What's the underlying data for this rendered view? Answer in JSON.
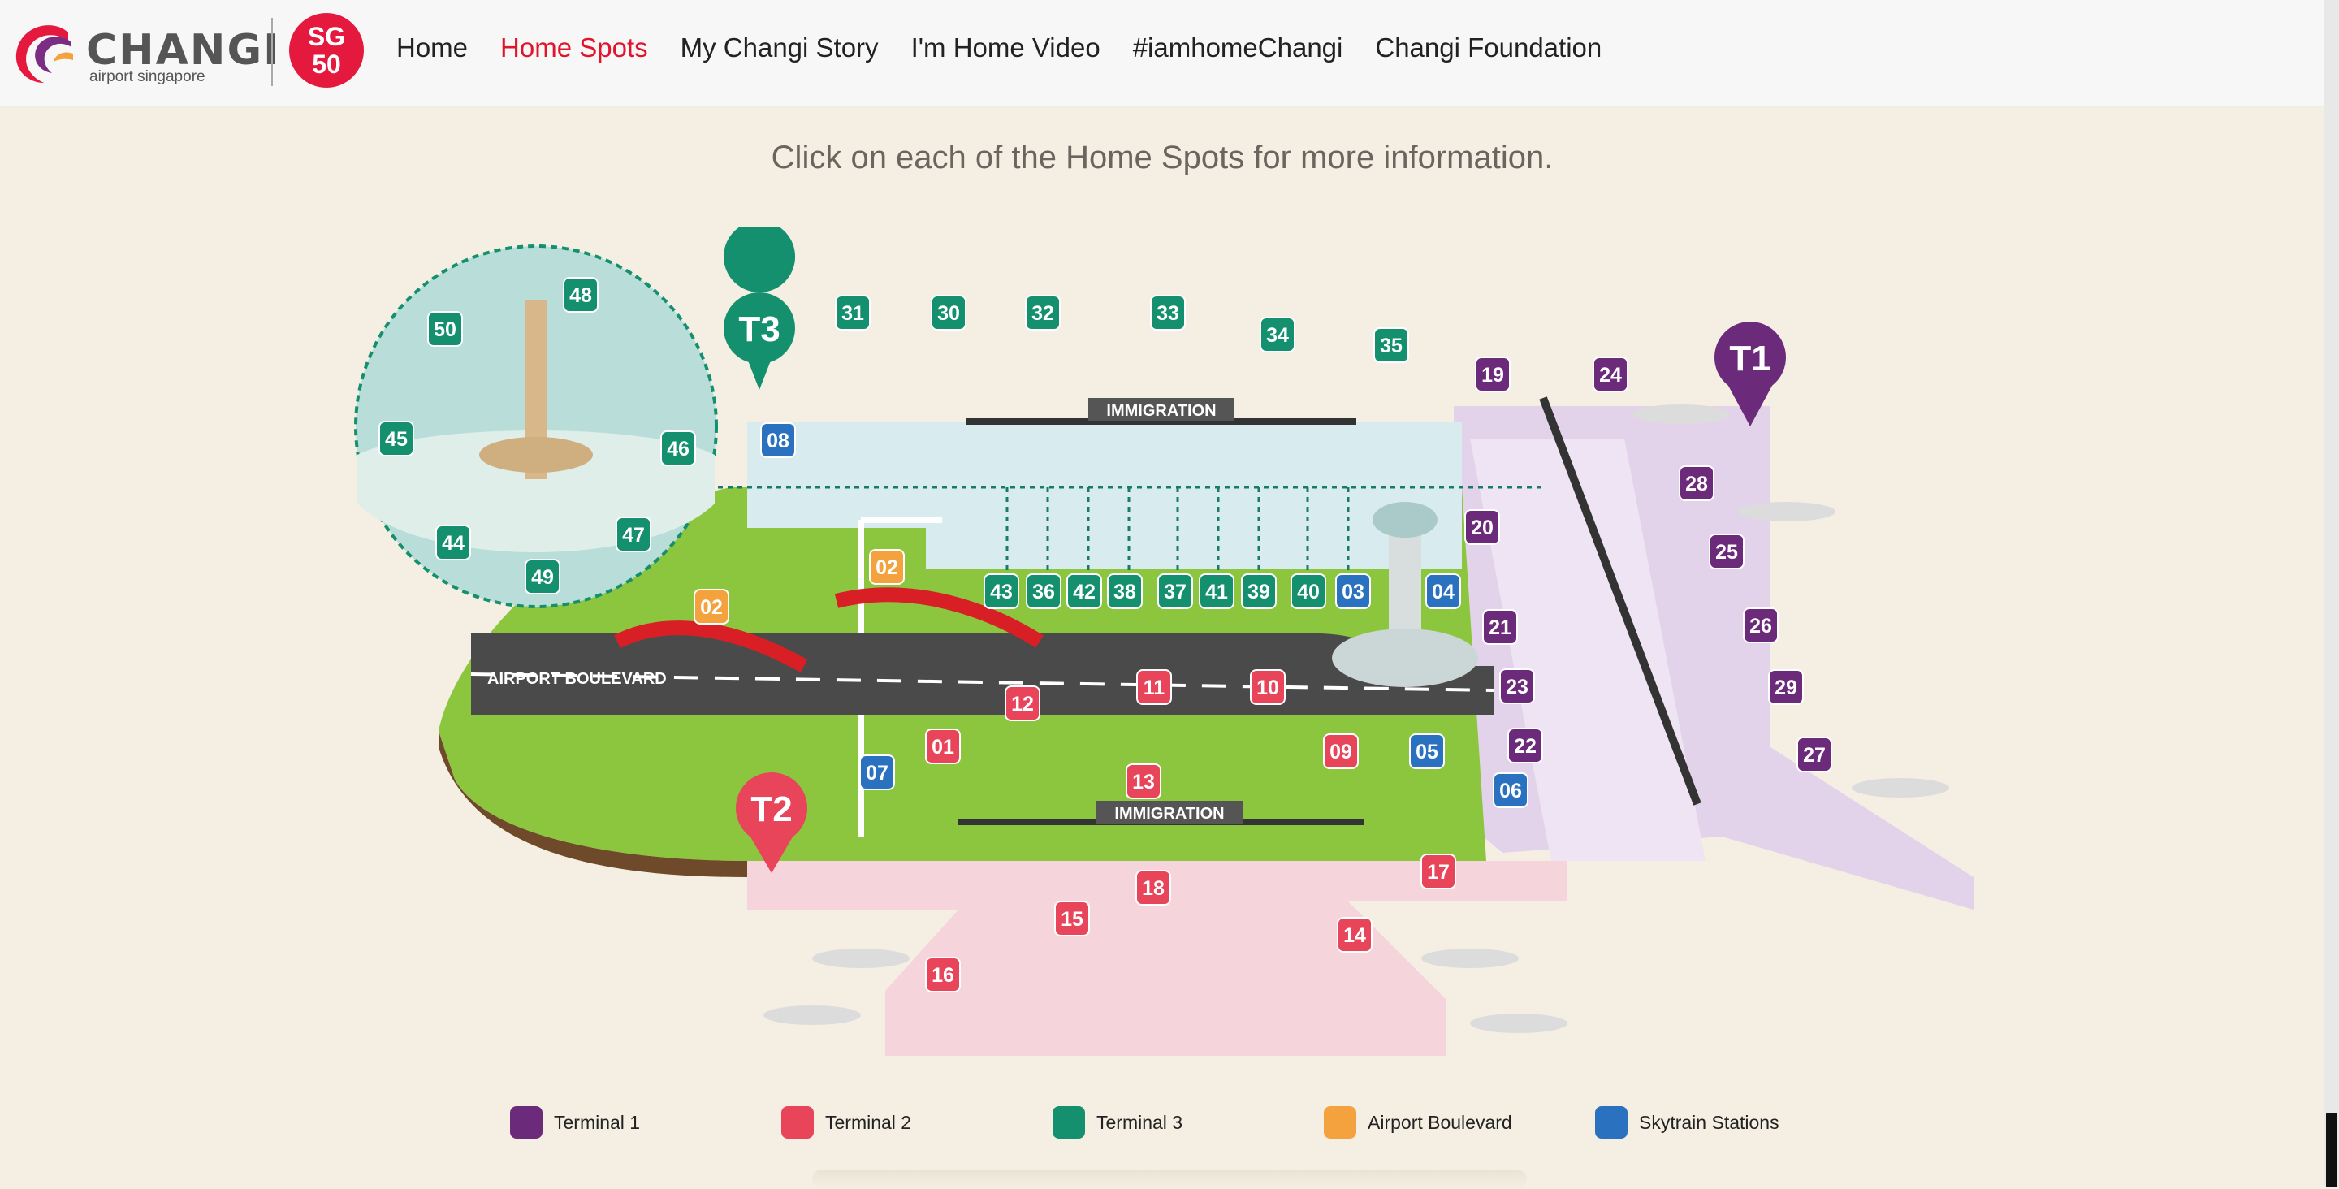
{
  "brand": {
    "logo_word": "CHANGI",
    "logo_sub": "airport singapore",
    "badge_top": "SG",
    "badge_bottom": "50"
  },
  "nav": {
    "items": [
      {
        "label": "Home"
      },
      {
        "label": "Home Spots",
        "active": true
      },
      {
        "label": "My Changi Story"
      },
      {
        "label": "I'm Home Video"
      },
      {
        "label": "#iamhomeChangi"
      },
      {
        "label": "Changi Foundation"
      }
    ]
  },
  "instruction": "Click on each of the Home Spots for more information.",
  "map": {
    "terminals": {
      "t1": "T1",
      "t2": "T2",
      "t3": "T3"
    },
    "labels": {
      "immigration_t3": "IMMIGRATION",
      "immigration_t2": "IMMIGRATION",
      "boulevard": "AIRPORT BOULEVARD"
    },
    "spots": {
      "s01": "01",
      "s02a": "02",
      "s02b": "02",
      "s03": "03",
      "s04": "04",
      "s05": "05",
      "s06": "06",
      "s07": "07",
      "s08": "08",
      "s09": "09",
      "s10": "10",
      "s11": "11",
      "s12": "12",
      "s13": "13",
      "s14": "14",
      "s15": "15",
      "s16": "16",
      "s17": "17",
      "s18": "18",
      "s19": "19",
      "s20": "20",
      "s21": "21",
      "s22": "22",
      "s23": "23",
      "s24": "24",
      "s25": "25",
      "s26": "26",
      "s27": "27",
      "s28": "28",
      "s29": "29",
      "s30": "30",
      "s31": "31",
      "s32": "32",
      "s33": "33",
      "s34": "34",
      "s35": "35",
      "s36": "36",
      "s37": "37",
      "s38": "38",
      "s39": "39",
      "s40": "40",
      "s41": "41",
      "s42": "42",
      "s43": "43",
      "s44": "44",
      "s45": "45",
      "s46": "46",
      "s47": "47",
      "s48": "48",
      "s49": "49",
      "s50": "50"
    }
  },
  "legend": [
    {
      "label": "Terminal 1",
      "color": "#6b2b7a"
    },
    {
      "label": "Terminal 2",
      "color": "#e8445a"
    },
    {
      "label": "Terminal 3",
      "color": "#14906e"
    },
    {
      "label": "Airport Boulevard",
      "color": "#f4a23d"
    },
    {
      "label": "Skytrain Stations",
      "color": "#2a72c0"
    }
  ],
  "colors": {
    "t1": "#6b2b7a",
    "t2": "#e8445a",
    "t3": "#14906e",
    "boulevard": "#f4a23d",
    "skytrain": "#2a72c0",
    "accent": "#e0152b"
  }
}
